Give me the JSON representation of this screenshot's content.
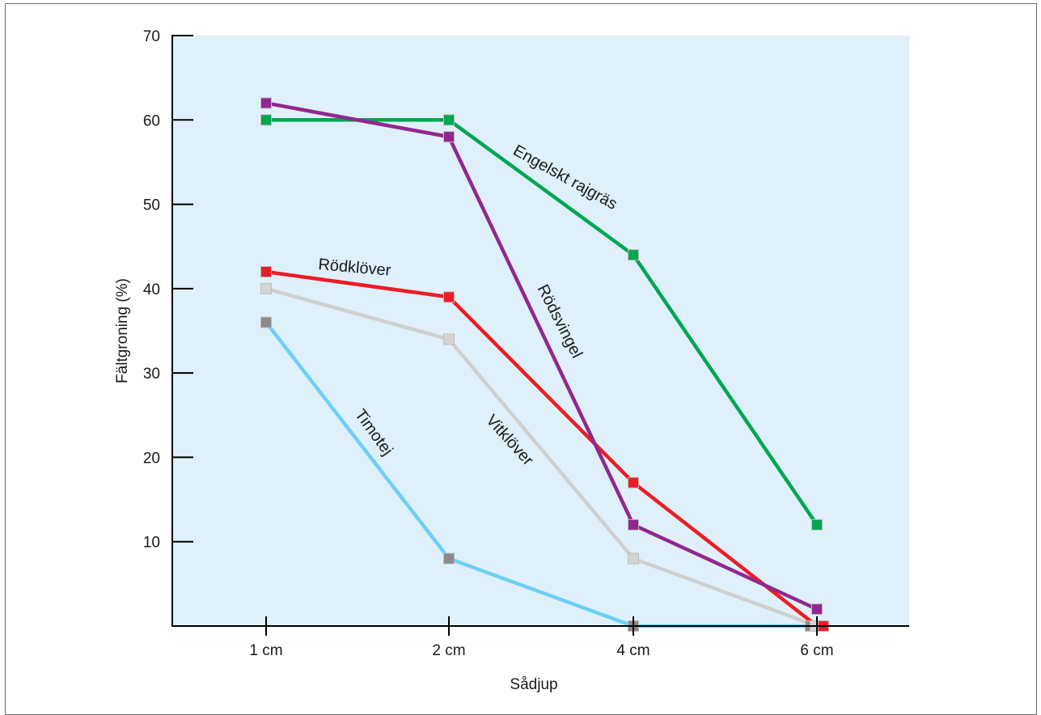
{
  "chart_data": {
    "type": "line",
    "xlabel": "Sådjup",
    "ylabel": "Fältgroning (%)",
    "categories": [
      "1 cm",
      "2 cm",
      "4 cm",
      "6 cm"
    ],
    "ylim": [
      0,
      70
    ],
    "yticks": [
      10,
      20,
      30,
      40,
      50,
      60,
      70
    ],
    "grid": false,
    "plot_background": "#dff0fa",
    "series": [
      {
        "name": "Engelskt rajgräs",
        "color": "#00a651",
        "marker_fill": "#00a651",
        "values": [
          60,
          60,
          44,
          12
        ]
      },
      {
        "name": "Rödsvingel",
        "color": "#92278f",
        "marker_fill": "#92278f",
        "values": [
          62,
          58,
          12,
          2
        ]
      },
      {
        "name": "Rödklöver",
        "color": "#ed1c24",
        "marker_fill": "#ed1c24",
        "values": [
          42,
          39,
          17,
          0
        ]
      },
      {
        "name": "Vitklöver",
        "color": "#cfcfcf",
        "marker_fill": "#d4d4d4",
        "values": [
          40,
          34,
          8,
          0
        ]
      },
      {
        "name": "Timotej",
        "color": "#6dcff6",
        "marker_fill": "#8a8a8a",
        "values": [
          36,
          8,
          0,
          0
        ]
      }
    ]
  }
}
